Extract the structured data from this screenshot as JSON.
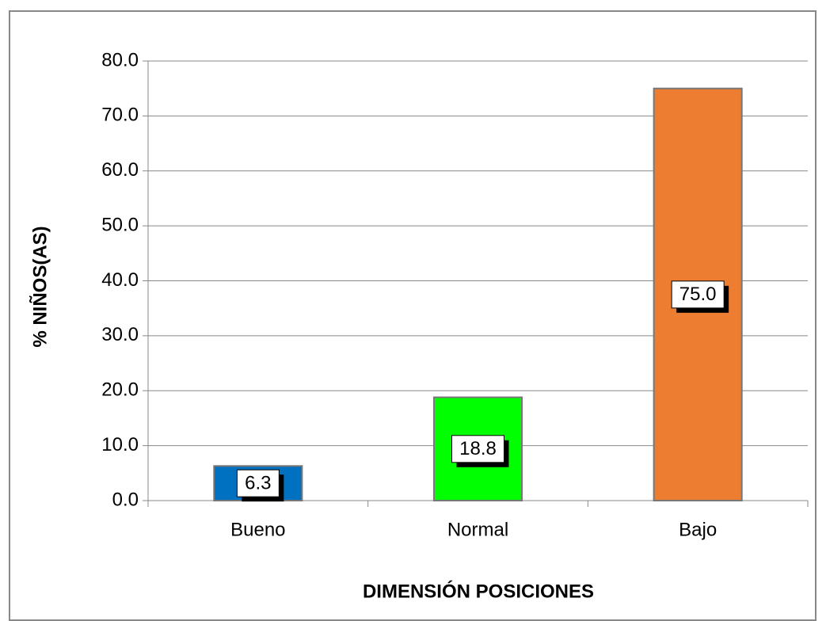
{
  "chart_data": {
    "type": "bar",
    "categories": [
      "Bueno",
      "Normal",
      "Bajo"
    ],
    "values": [
      6.3,
      18.8,
      75
    ],
    "value_labels": [
      "6.3",
      "18.8",
      "75.0"
    ],
    "colors": [
      "#0070c0",
      "#00ff00",
      "#ed7d31"
    ],
    "ylim": [
      0,
      80
    ],
    "yticks": [
      {
        "value": 0,
        "label": "0.0"
      },
      {
        "value": 10,
        "label": "10.0"
      },
      {
        "value": 20,
        "label": "20.0"
      },
      {
        "value": 30,
        "label": "30.0"
      },
      {
        "value": 40,
        "label": "40.0"
      },
      {
        "value": 50,
        "label": "50.0"
      },
      {
        "value": 60,
        "label": "60.0"
      },
      {
        "value": 70,
        "label": "70.0"
      },
      {
        "value": 80,
        "label": "80.0"
      }
    ],
    "grid": true,
    "ylabel": "% NIÑOS(AS)",
    "xlabel": "DIMENSIÓN POSICIONES"
  }
}
